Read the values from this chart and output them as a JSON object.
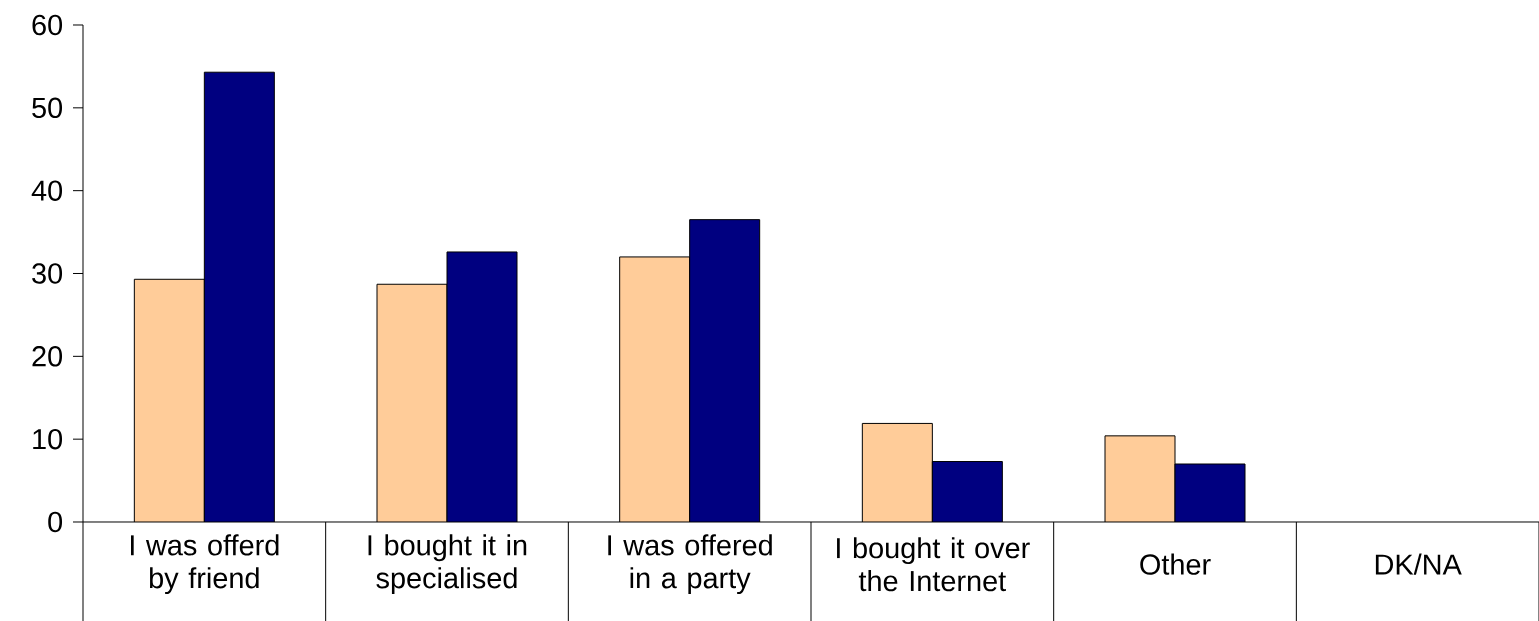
{
  "chart_data": {
    "type": "bar",
    "categories": [
      "I was offerd by friend",
      "I bought it in specialised",
      "I was offered in a party",
      "I bought it over the Internet",
      "Other",
      "DK/NA"
    ],
    "series": [
      {
        "color": "#ffcc99",
        "values": [
          29.3,
          28.7,
          32.0,
          11.9,
          10.4,
          null
        ]
      },
      {
        "color": "#000080",
        "values": [
          54.3,
          32.6,
          36.5,
          7.3,
          7.0,
          null
        ]
      }
    ],
    "ylim": [
      0,
      60
    ],
    "yticks": [
      0,
      10,
      20,
      30,
      40,
      50,
      60
    ]
  }
}
